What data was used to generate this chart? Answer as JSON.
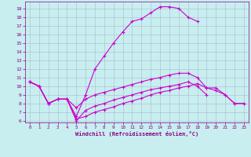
{
  "xlabel": "Windchill (Refroidissement éolien,°C)",
  "background_color": "#c8eef0",
  "line_color": "#cc00cc",
  "grid_color": "#aabbcc",
  "x_ticks": [
    0,
    1,
    2,
    3,
    4,
    5,
    6,
    7,
    8,
    9,
    10,
    11,
    12,
    13,
    14,
    15,
    16,
    17,
    18,
    19,
    20,
    21,
    22,
    23
  ],
  "y_ticks": [
    6,
    7,
    8,
    9,
    10,
    11,
    12,
    13,
    14,
    15,
    16,
    17,
    18,
    19
  ],
  "ylim": [
    5.8,
    19.8
  ],
  "xlim": [
    -0.5,
    23.5
  ],
  "line1_y": [
    10.5,
    10.0,
    8.0,
    8.5,
    8.5,
    6.2,
    6.5,
    7.0,
    7.3,
    7.6,
    8.0,
    8.3,
    8.6,
    9.0,
    9.3,
    9.5,
    9.8,
    10.0,
    10.3,
    9.8,
    9.5,
    9.0,
    8.0,
    8.0
  ],
  "line2_y": [
    10.5,
    10.0,
    8.0,
    8.5,
    8.5,
    6.5,
    9.0,
    12.0,
    13.5,
    15.0,
    16.3,
    17.5,
    17.8,
    18.5,
    19.2,
    19.2,
    19.0,
    18.0,
    17.5,
    null,
    null,
    null,
    null,
    null
  ],
  "line3_y": [
    10.5,
    10.0,
    8.0,
    8.5,
    8.5,
    7.5,
    8.5,
    9.0,
    9.3,
    9.6,
    9.9,
    10.2,
    10.5,
    10.8,
    11.0,
    11.3,
    11.5,
    11.5,
    11.0,
    9.8,
    9.8,
    9.0,
    8.0,
    8.0
  ],
  "line4_y": [
    10.5,
    10.0,
    8.0,
    8.5,
    8.5,
    6.0,
    7.2,
    7.7,
    8.0,
    8.4,
    8.7,
    9.0,
    9.3,
    9.6,
    9.8,
    10.0,
    10.2,
    10.5,
    10.0,
    9.0,
    null,
    null,
    null,
    null
  ]
}
